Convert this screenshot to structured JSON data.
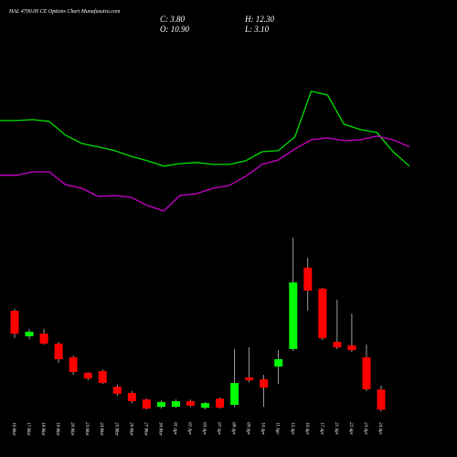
{
  "chart_data": {
    "type": "candlestick",
    "title": "HAL 4700.00 CE Options Chart Munafasutra.com",
    "ohlc_labels": [
      "C: 3.80",
      "H: 12.30",
      "O: 10.90",
      "L: 3.10"
    ],
    "categories": [
      "16 Mar",
      "17 Mar",
      "18 Mar",
      "19 Mar",
      "20 Mar",
      "23 Mar",
      "24 Mar",
      "25 Mar",
      "26 Mar",
      "27 Mar",
      "30 Mar",
      "01 Apr",
      "02 Apr",
      "03 Apr",
      "07 Apr",
      "08 Apr",
      "09 Apr",
      "10 Apr",
      "11 Apr",
      "15 Apr",
      "16 Apr",
      "17 Apr",
      "21 Apr",
      "22 Apr",
      "23 Apr",
      "24 Apr"
    ],
    "open": [
      38.7,
      29.7,
      30.6,
      27.1,
      22.3,
      16.8,
      17.4,
      11.9,
      9.7,
      7.4,
      4.8,
      4.8,
      6.8,
      4.5,
      7.7,
      5.5,
      15.2,
      14.5,
      19.0,
      25.2,
      53.9,
      46.5,
      27.7,
      26.5,
      22.3,
      10.9
    ],
    "high": [
      39.4,
      32.3,
      32.3,
      27.7,
      22.9,
      17.1,
      18.1,
      12.6,
      10.3,
      7.7,
      7.1,
      7.4,
      7.4,
      6.5,
      8.1,
      25.2,
      25.8,
      16.1,
      24.8,
      64.5,
      57.4,
      46.8,
      42.6,
      37.7,
      26.8,
      12.3
    ],
    "low": [
      29.0,
      28.7,
      26.8,
      20.3,
      16.1,
      14.2,
      12.9,
      8.7,
      6.1,
      3.9,
      4.2,
      4.5,
      4.8,
      3.9,
      4.2,
      4.8,
      13.5,
      4.8,
      12.9,
      24.5,
      38.7,
      28.4,
      25.2,
      24.2,
      10.3,
      3.1
    ],
    "close": [
      30.6,
      31.3,
      27.1,
      21.6,
      17.1,
      14.8,
      13.2,
      9.4,
      6.8,
      4.2,
      6.5,
      6.8,
      5.2,
      6.1,
      4.5,
      13.2,
      14.2,
      11.6,
      21.6,
      48.7,
      45.8,
      29.0,
      25.8,
      24.8,
      11.0,
      3.8
    ],
    "up_color": "#00ff00",
    "down_color": "#ff0000",
    "lines": [
      {
        "color": "#00e000",
        "values": [
          105.8,
          105.8,
          106.1,
          105.5,
          100.6,
          97.7,
          96.5,
          95.2,
          93.2,
          91.6,
          89.7,
          90.6,
          91.0,
          90.3,
          90.3,
          91.6,
          94.8,
          95.2,
          100.0,
          116.1,
          114.8,
          104.5,
          102.6,
          101.6,
          94.8,
          89.7
        ]
      },
      {
        "color": "#cc00cc",
        "values": [
          86.5,
          86.5,
          87.7,
          87.7,
          83.2,
          81.9,
          79.0,
          79.4,
          78.7,
          75.8,
          73.9,
          79.4,
          80.0,
          81.9,
          82.9,
          86.1,
          90.3,
          91.9,
          95.8,
          99.0,
          99.7,
          98.7,
          99.0,
          100.3,
          99.0,
          96.5
        ]
      }
    ],
    "ylim": [
      0,
      148
    ]
  }
}
